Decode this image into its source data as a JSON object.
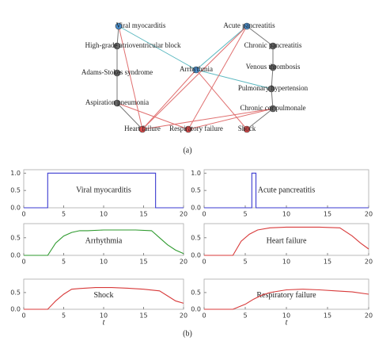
{
  "diagram": {
    "nodes": [
      {
        "label": "Viral myocarditis"
      },
      {
        "label": "High-grade atrioventricular block"
      },
      {
        "label": "Adams-Stokes syndrome"
      },
      {
        "label": "Aspiration pneumonia"
      },
      {
        "label": "Heart failure"
      },
      {
        "label": "Respiratory failure"
      },
      {
        "label": "Arrhythmia"
      },
      {
        "label": "Shock"
      },
      {
        "label": "Acute pancreatitis"
      },
      {
        "label": "Chronic pancreatitis"
      },
      {
        "label": "Venous thrombosis"
      },
      {
        "label": "Pulmonary hypertension"
      },
      {
        "label": "Chronic cor pulmonale"
      }
    ],
    "caption": "(a)"
  },
  "chart_data": [
    {
      "type": "line",
      "title": "Viral myocarditis",
      "x": [
        0,
        3,
        3,
        16.5,
        16.5,
        20
      ],
      "values": [
        0,
        0,
        1,
        1,
        0,
        0
      ],
      "color": "#3a3ad0",
      "xlim": [
        0,
        20
      ],
      "xticks": [
        0,
        5,
        10,
        15,
        20
      ],
      "ylim": [
        0,
        1.1
      ],
      "yticks": [
        {
          "value": 0,
          "label": "0.0"
        },
        {
          "value": 0.5,
          "label": "0.5"
        },
        {
          "value": 1,
          "label": "1.0"
        }
      ]
    },
    {
      "type": "line",
      "title": "Acute pancreatitis",
      "x": [
        0,
        5.8,
        5.8,
        6.3,
        6.3,
        20
      ],
      "values": [
        0,
        0,
        1,
        1,
        0,
        0
      ],
      "color": "#3a3ad0",
      "xlim": [
        0,
        20
      ],
      "xticks": [
        0,
        5,
        10,
        15,
        20
      ],
      "ylim": [
        0,
        1.1
      ],
      "yticks": [
        {
          "value": 0,
          "label": "0.0"
        },
        {
          "value": 0.5,
          "label": "0.5"
        },
        {
          "value": 1,
          "label": "1.0"
        }
      ]
    },
    {
      "type": "line",
      "title": "Arrhythmia",
      "x": [
        0,
        3,
        4,
        5,
        6,
        7,
        8,
        10,
        12,
        14,
        16,
        17,
        18,
        19,
        20
      ],
      "values": [
        0,
        0,
        0.35,
        0.55,
        0.65,
        0.7,
        0.7,
        0.72,
        0.72,
        0.72,
        0.7,
        0.5,
        0.3,
        0.15,
        0.05
      ],
      "color": "#2e9a2e",
      "xlim": [
        0,
        20
      ],
      "xticks": [
        0,
        5,
        10,
        15,
        20
      ],
      "ylim": [
        0,
        0.9
      ],
      "yticks": [
        {
          "value": 0,
          "label": "0.0"
        },
        {
          "value": 0.5,
          "label": "0.5"
        }
      ]
    },
    {
      "type": "line",
      "title": "Heart failure",
      "x": [
        0,
        3.5,
        4.5,
        5.5,
        6.5,
        8,
        10,
        12,
        14,
        16.5,
        18,
        19,
        20
      ],
      "values": [
        0,
        0,
        0.4,
        0.6,
        0.72,
        0.78,
        0.8,
        0.8,
        0.8,
        0.78,
        0.55,
        0.35,
        0.18
      ],
      "color": "#d83a3a",
      "xlim": [
        0,
        20
      ],
      "xticks": [
        0,
        5,
        10,
        15,
        20
      ],
      "ylim": [
        0,
        0.9
      ],
      "yticks": [
        {
          "value": 0,
          "label": "0.0"
        },
        {
          "value": 0.5,
          "label": "0.5"
        }
      ]
    },
    {
      "type": "line",
      "title": "Shock",
      "x": [
        0,
        3,
        4,
        5,
        6,
        7,
        9,
        11,
        13,
        15,
        17,
        18,
        19,
        20
      ],
      "values": [
        0,
        0,
        0.25,
        0.45,
        0.6,
        0.62,
        0.65,
        0.65,
        0.63,
        0.6,
        0.55,
        0.4,
        0.25,
        0.18
      ],
      "color": "#d83a3a",
      "xlim": [
        0,
        20
      ],
      "xticks": [
        0,
        5,
        10,
        15,
        20
      ],
      "ylim": [
        0,
        0.9
      ],
      "yticks": [
        {
          "value": 0,
          "label": "0.0"
        },
        {
          "value": 0.5,
          "label": "0.5"
        }
      ],
      "xlabel": "t"
    },
    {
      "type": "line",
      "title": "Respiratory failure",
      "x": [
        0,
        3.5,
        5,
        6,
        7,
        8,
        10,
        12,
        14,
        16,
        18,
        20
      ],
      "values": [
        0,
        0,
        0.15,
        0.3,
        0.42,
        0.5,
        0.58,
        0.6,
        0.58,
        0.55,
        0.52,
        0.45
      ],
      "color": "#d83a3a",
      "xlim": [
        0,
        20
      ],
      "xticks": [
        0,
        5,
        10,
        15,
        20
      ],
      "ylim": [
        0,
        0.9
      ],
      "yticks": [
        {
          "value": 0,
          "label": "0.0"
        },
        {
          "value": 0.5,
          "label": "0.5"
        }
      ],
      "xlabel": "t"
    }
  ],
  "caption": "(b)"
}
